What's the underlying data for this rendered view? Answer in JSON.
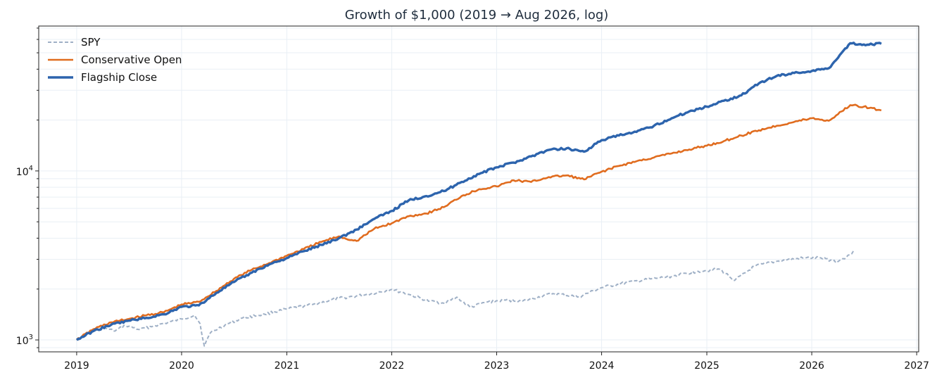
{
  "chart_data": {
    "type": "line",
    "title": "Growth of $1,000 (2019 → Aug 2026, log)",
    "xlabel": "",
    "ylabel": "",
    "x_range": [
      "2018-08-22",
      "2027-01-08"
    ],
    "ylim": [
      850,
      72000
    ],
    "yscale": "log",
    "x_ticks": [
      "2019",
      "2020",
      "2021",
      "2022",
      "2023",
      "2024",
      "2025",
      "2026",
      "2027"
    ],
    "y_ticks": [
      {
        "value": 1000,
        "base": "10",
        "exp": "3"
      },
      {
        "value": 10000,
        "base": "10",
        "exp": "4"
      }
    ],
    "grid": true,
    "legend": "top-left",
    "series": [
      {
        "name": "SPY",
        "color": "#9fb0c6",
        "style": "dashed",
        "points": [
          [
            "2019-01-01",
            1000
          ],
          [
            "2019-02-15",
            1110
          ],
          [
            "2019-04-01",
            1170
          ],
          [
            "2019-05-15",
            1130
          ],
          [
            "2019-06-20",
            1220
          ],
          [
            "2019-08-10",
            1150
          ],
          [
            "2019-09-25",
            1210
          ],
          [
            "2019-11-15",
            1270
          ],
          [
            "2020-01-01",
            1330
          ],
          [
            "2020-02-15",
            1400
          ],
          [
            "2020-03-05",
            1250
          ],
          [
            "2020-03-20",
            920
          ],
          [
            "2020-04-10",
            1100
          ],
          [
            "2020-06-01",
            1230
          ],
          [
            "2020-08-01",
            1350
          ],
          [
            "2020-10-15",
            1420
          ],
          [
            "2021-01-01",
            1520
          ],
          [
            "2021-04-01",
            1620
          ],
          [
            "2021-07-01",
            1760
          ],
          [
            "2021-10-01",
            1850
          ],
          [
            "2022-01-01",
            1990
          ],
          [
            "2022-03-01",
            1860
          ],
          [
            "2022-05-15",
            1690
          ],
          [
            "2022-07-01",
            1650
          ],
          [
            "2022-08-15",
            1790
          ],
          [
            "2022-10-01",
            1560
          ],
          [
            "2022-12-01",
            1680
          ],
          [
            "2023-02-01",
            1720
          ],
          [
            "2023-04-01",
            1700
          ],
          [
            "2023-07-15",
            1880
          ],
          [
            "2023-10-15",
            1800
          ],
          [
            "2024-01-01",
            2040
          ],
          [
            "2024-04-01",
            2190
          ],
          [
            "2024-07-15",
            2320
          ],
          [
            "2024-09-01",
            2380
          ],
          [
            "2024-12-01",
            2550
          ],
          [
            "2025-02-15",
            2620
          ],
          [
            "2025-04-08",
            2250
          ],
          [
            "2025-06-15",
            2720
          ],
          [
            "2025-09-01",
            2920
          ],
          [
            "2025-12-01",
            3050
          ],
          [
            "2026-02-01",
            3060
          ],
          [
            "2026-04-01",
            2900
          ],
          [
            "2026-06-01",
            3350
          ]
        ]
      },
      {
        "name": "Conservative Open",
        "color": "#e06c1f",
        "style": "solid",
        "points": [
          [
            "2019-01-01",
            1000
          ],
          [
            "2019-03-01",
            1160
          ],
          [
            "2019-05-01",
            1270
          ],
          [
            "2019-07-01",
            1330
          ],
          [
            "2019-09-01",
            1400
          ],
          [
            "2019-11-01",
            1460
          ],
          [
            "2020-01-01",
            1620
          ],
          [
            "2020-03-01",
            1680
          ],
          [
            "2020-05-01",
            1950
          ],
          [
            "2020-07-01",
            2300
          ],
          [
            "2020-09-01",
            2600
          ],
          [
            "2020-11-01",
            2850
          ],
          [
            "2021-01-01",
            3150
          ],
          [
            "2021-03-01",
            3450
          ],
          [
            "2021-05-01",
            3800
          ],
          [
            "2021-07-01",
            4100
          ],
          [
            "2021-08-15",
            3900
          ],
          [
            "2021-09-01",
            3850
          ],
          [
            "2021-11-01",
            4550
          ],
          [
            "2022-01-01",
            4900
          ],
          [
            "2022-03-01",
            5400
          ],
          [
            "2022-05-01",
            5600
          ],
          [
            "2022-07-01",
            6100
          ],
          [
            "2022-09-01",
            7100
          ],
          [
            "2022-11-01",
            7800
          ],
          [
            "2023-01-01",
            8100
          ],
          [
            "2023-03-01",
            8800
          ],
          [
            "2023-05-01",
            8600
          ],
          [
            "2023-07-01",
            9200
          ],
          [
            "2023-09-01",
            9400
          ],
          [
            "2023-11-01",
            8900
          ],
          [
            "2024-01-01",
            9900
          ],
          [
            "2024-03-01",
            10700
          ],
          [
            "2024-05-01",
            11400
          ],
          [
            "2024-07-01",
            12000
          ],
          [
            "2024-09-01",
            12700
          ],
          [
            "2024-11-01",
            13400
          ],
          [
            "2025-01-01",
            14100
          ],
          [
            "2025-03-01",
            15000
          ],
          [
            "2025-05-01",
            16200
          ],
          [
            "2025-07-01",
            17400
          ],
          [
            "2025-09-01",
            18500
          ],
          [
            "2025-11-01",
            19500
          ],
          [
            "2026-01-01",
            20500
          ],
          [
            "2026-03-01",
            19800
          ],
          [
            "2026-04-15",
            22500
          ],
          [
            "2026-05-15",
            24500
          ],
          [
            "2026-07-01",
            24000
          ],
          [
            "2026-08-31",
            22800
          ]
        ]
      },
      {
        "name": "Flagship Close",
        "color": "#2d64ad",
        "style": "solid",
        "points": [
          [
            "2019-01-01",
            1000
          ],
          [
            "2019-03-01",
            1130
          ],
          [
            "2019-05-01",
            1230
          ],
          [
            "2019-07-01",
            1300
          ],
          [
            "2019-09-01",
            1350
          ],
          [
            "2019-11-01",
            1420
          ],
          [
            "2020-01-01",
            1570
          ],
          [
            "2020-03-01",
            1600
          ],
          [
            "2020-05-01",
            1900
          ],
          [
            "2020-07-01",
            2200
          ],
          [
            "2020-09-01",
            2500
          ],
          [
            "2020-11-01",
            2800
          ],
          [
            "2021-01-01",
            3050
          ],
          [
            "2021-03-01",
            3350
          ],
          [
            "2021-05-01",
            3650
          ],
          [
            "2021-07-01",
            4000
          ],
          [
            "2021-09-01",
            4500
          ],
          [
            "2021-11-01",
            5200
          ],
          [
            "2022-01-01",
            5800
          ],
          [
            "2022-03-01",
            6700
          ],
          [
            "2022-05-01",
            7100
          ],
          [
            "2022-07-01",
            7600
          ],
          [
            "2022-09-01",
            8600
          ],
          [
            "2022-11-01",
            9600
          ],
          [
            "2023-01-01",
            10500
          ],
          [
            "2023-03-01",
            11200
          ],
          [
            "2023-05-01",
            12200
          ],
          [
            "2023-07-01",
            13300
          ],
          [
            "2023-09-01",
            13600
          ],
          [
            "2023-11-01",
            13000
          ],
          [
            "2024-01-01",
            15200
          ],
          [
            "2024-03-01",
            16200
          ],
          [
            "2024-05-01",
            17000
          ],
          [
            "2024-07-01",
            18500
          ],
          [
            "2024-09-01",
            20500
          ],
          [
            "2024-11-01",
            22500
          ],
          [
            "2025-01-01",
            24000
          ],
          [
            "2025-03-01",
            26000
          ],
          [
            "2025-05-01",
            28000
          ],
          [
            "2025-07-01",
            33000
          ],
          [
            "2025-09-01",
            36500
          ],
          [
            "2025-11-01",
            38000
          ],
          [
            "2026-01-01",
            39000
          ],
          [
            "2026-03-01",
            40500
          ],
          [
            "2026-04-15",
            50000
          ],
          [
            "2026-05-15",
            57000
          ],
          [
            "2026-07-01",
            56000
          ],
          [
            "2026-08-31",
            56500
          ]
        ]
      }
    ]
  }
}
